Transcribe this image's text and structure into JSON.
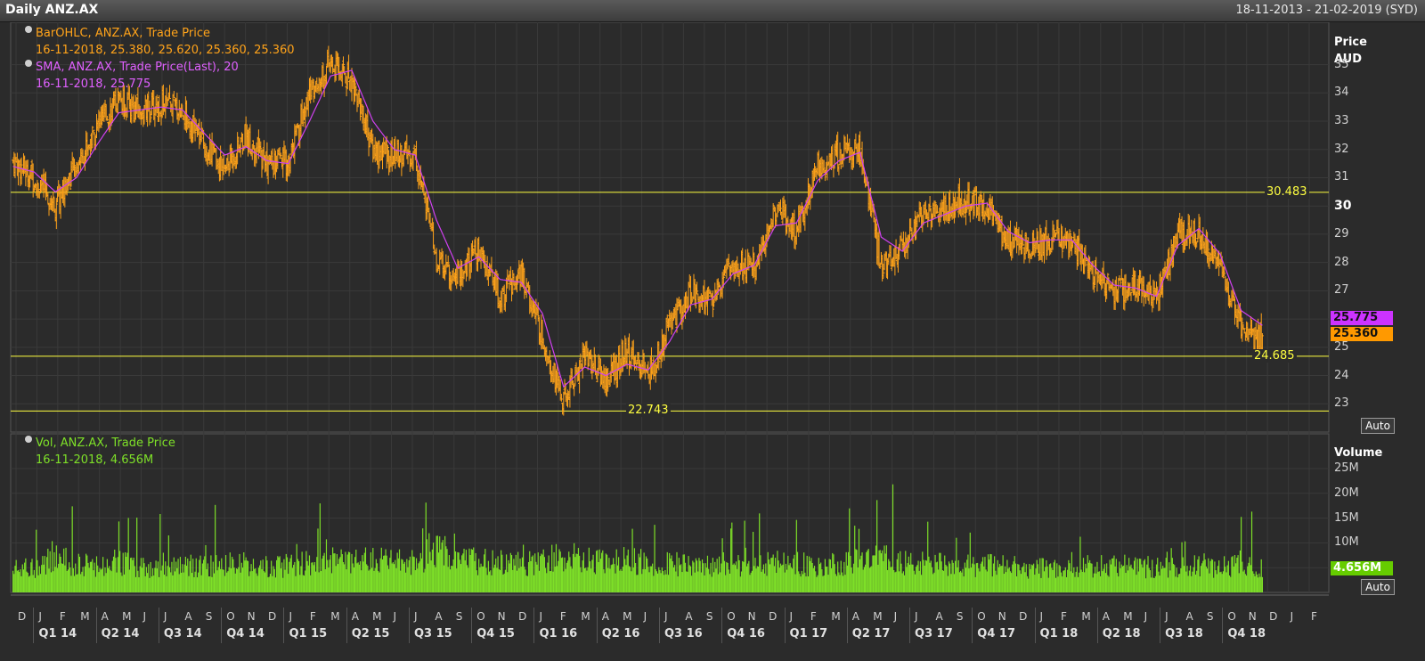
{
  "window": {
    "title": "Daily ANZ.AX",
    "date_range": "18-11-2013 - 21-02-2019 (SYD)"
  },
  "legend": {
    "ohlc_title": "BarOHLC, ANZ.AX, Trade Price",
    "ohlc_values": "16-11-2018, 25.380, 25.620, 25.360, 25.360",
    "sma_title": "SMA, ANZ.AX, Trade Price(Last),  20",
    "sma_values": "16-11-2018, 25.775",
    "vol_title": "Vol, ANZ.AX, Trade Price",
    "vol_values": "16-11-2018, 4.656M"
  },
  "price_axis": {
    "label_line1": "Price",
    "label_line2": "AUD",
    "ticks": [
      "35",
      "34",
      "33",
      "32",
      "31",
      "30",
      "29",
      "28",
      "27",
      "25",
      "24",
      "23"
    ],
    "bold_tick": "30"
  },
  "volume_axis": {
    "label": "Volume",
    "ticks": [
      "25M",
      "20M",
      "15M",
      "10M"
    ]
  },
  "auto_buttons": {
    "price": "Auto",
    "volume": "Auto"
  },
  "horizontal_lines": [
    {
      "value": 30.483,
      "label": "30.483"
    },
    {
      "value": 24.685,
      "label": "24.685"
    },
    {
      "value": 22.743,
      "label": "22.743"
    }
  ],
  "last_values": {
    "sma": "25.775",
    "price": "25.360",
    "volume": "4.656M"
  },
  "colors": {
    "ohlc": "#ffa31a",
    "sma": "#d040f0",
    "volume": "#7ee028",
    "hline": "#ffff40",
    "grid": "#3a3a3a"
  },
  "x_axis": {
    "months": [
      "D",
      "J",
      "F",
      "M",
      "A",
      "M",
      "J",
      "J",
      "A",
      "S",
      "O",
      "N",
      "D",
      "J",
      "F",
      "M",
      "A",
      "M",
      "J",
      "J",
      "A",
      "S",
      "O",
      "N",
      "D",
      "J",
      "F",
      "M",
      "A",
      "M",
      "J",
      "J",
      "A",
      "S",
      "O",
      "N",
      "D",
      "J",
      "F",
      "M",
      "A",
      "M",
      "J",
      "J",
      "A",
      "S",
      "O",
      "N",
      "D",
      "J",
      "F",
      "M",
      "A",
      "M",
      "J",
      "J",
      "A",
      "S",
      "O",
      "N",
      "D",
      "J",
      "F"
    ],
    "quarters": [
      "Q1 14",
      "Q2 14",
      "Q3 14",
      "Q4 14",
      "Q1 15",
      "Q2 15",
      "Q3 15",
      "Q4 15",
      "Q1 16",
      "Q2 16",
      "Q3 16",
      "Q4 16",
      "Q1 17",
      "Q2 17",
      "Q3 17",
      "Q4 17",
      "Q1 18",
      "Q2 18",
      "Q3 18",
      "Q4 18"
    ]
  },
  "chart_data": {
    "type": "line",
    "title": "Daily ANZ.AX",
    "ylabel": "Price AUD",
    "ylim": [
      22.0,
      36.5
    ],
    "volume_ylim": [
      0,
      32
    ],
    "x": [
      "2013-12",
      "2014-01",
      "2014-02",
      "2014-03",
      "2014-04",
      "2014-05",
      "2014-06",
      "2014-07",
      "2014-08",
      "2014-09",
      "2014-10",
      "2014-11",
      "2014-12",
      "2015-01",
      "2015-02",
      "2015-03",
      "2015-04",
      "2015-05",
      "2015-06",
      "2015-07",
      "2015-08",
      "2015-09",
      "2015-10",
      "2015-11",
      "2015-12",
      "2016-01",
      "2016-02",
      "2016-03",
      "2016-04",
      "2016-05",
      "2016-06",
      "2016-07",
      "2016-08",
      "2016-09",
      "2016-10",
      "2016-11",
      "2016-12",
      "2017-01",
      "2017-02",
      "2017-03",
      "2017-04",
      "2017-05",
      "2017-06",
      "2017-07",
      "2017-08",
      "2017-09",
      "2017-10",
      "2017-11",
      "2017-12",
      "2018-01",
      "2018-02",
      "2018-03",
      "2018-04",
      "2018-05",
      "2018-06",
      "2018-07",
      "2018-08",
      "2018-09",
      "2018-10",
      "2018-11"
    ],
    "series": [
      {
        "name": "BarOHLC, ANZ.AX, Trade Price",
        "values": [
          31.6,
          31.0,
          30.0,
          31.5,
          32.8,
          33.8,
          33.3,
          33.6,
          33.4,
          32.2,
          31.3,
          32.5,
          31.5,
          31.5,
          34.0,
          35.0,
          34.5,
          32.0,
          31.8,
          31.8,
          28.0,
          27.6,
          28.4,
          26.8,
          27.6,
          25.4,
          23.0,
          24.8,
          23.8,
          24.8,
          24.0,
          25.8,
          27.0,
          26.6,
          28.0,
          27.8,
          29.8,
          29.2,
          31.4,
          31.8,
          32.0,
          27.8,
          28.6,
          29.8,
          29.8,
          30.2,
          30.0,
          28.8,
          28.6,
          28.8,
          28.8,
          27.6,
          27.0,
          27.2,
          26.6,
          29.0,
          29.0,
          27.8,
          25.6,
          25.36
        ]
      },
      {
        "name": "SMA, ANZ.AX, Trade Price(Last),  20",
        "values": [
          31.4,
          31.2,
          30.5,
          31.0,
          32.2,
          33.3,
          33.4,
          33.5,
          33.4,
          32.6,
          31.8,
          32.1,
          31.6,
          31.5,
          33.0,
          34.6,
          34.8,
          33.0,
          32.0,
          31.8,
          29.5,
          27.8,
          28.2,
          27.4,
          27.3,
          26.2,
          23.6,
          24.3,
          24.0,
          24.4,
          24.2,
          25.2,
          26.5,
          26.7,
          27.6,
          27.9,
          29.3,
          29.4,
          30.9,
          31.6,
          31.9,
          28.9,
          28.4,
          29.4,
          29.7,
          30.0,
          30.1,
          29.1,
          28.7,
          28.8,
          28.8,
          27.9,
          27.2,
          27.1,
          26.8,
          28.6,
          29.2,
          28.3,
          26.3,
          25.775
        ]
      },
      {
        "name": "Vol, ANZ.AX, Trade Price",
        "values": [
          4.6,
          5.2,
          6.8,
          5.8,
          5.4,
          6.2,
          5.1,
          5.0,
          5.6,
          5.3,
          5.5,
          5.9,
          5.1,
          5.4,
          6.0,
          6.4,
          5.8,
          6.6,
          6.0,
          6.3,
          8.6,
          6.7,
          6.2,
          6.1,
          5.8,
          6.2,
          7.2,
          6.8,
          6.0,
          6.4,
          5.9,
          6.0,
          5.5,
          5.6,
          5.5,
          5.4,
          5.8,
          5.8,
          5.2,
          5.6,
          6.8,
          6.9,
          5.8,
          5.7,
          5.5,
          5.4,
          5.6,
          5.2,
          5.0,
          5.1,
          5.0,
          5.3,
          5.4,
          5.2,
          5.1,
          5.3,
          5.2,
          4.9,
          6.0,
          4.656
        ]
      }
    ]
  }
}
